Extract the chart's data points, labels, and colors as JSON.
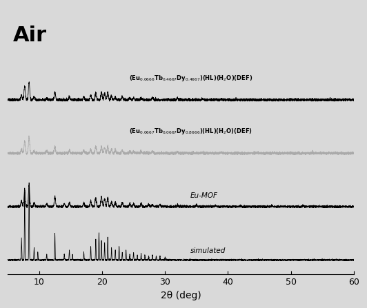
{
  "title": "Air",
  "xlabel": "2θ (deg)",
  "xlim": [
    5,
    60
  ],
  "x_ticks": [
    10,
    20,
    30,
    40,
    50,
    60
  ],
  "offsets": [
    0.0,
    0.55,
    1.1,
    1.65
  ],
  "colors": [
    "black",
    "black",
    "#aaaaaa",
    "black"
  ],
  "labels": [
    "simulated",
    "Eu-MOF",
    "(Eu$_{0.0667}$Tb$_{0.0667}$Dy$_{0.8666}$)(HL)(H$_{2}$O)(DEF)",
    "(Eu$_{0.0666}$Tb$_{0.4667}$Dy$_{0.4667}$)(HL)(H$_{2}$O)(DEF)"
  ],
  "background_color": "#d9d9d9",
  "plot_bg": "#d9d9d9",
  "ylim": [
    -0.15,
    2.6
  ]
}
